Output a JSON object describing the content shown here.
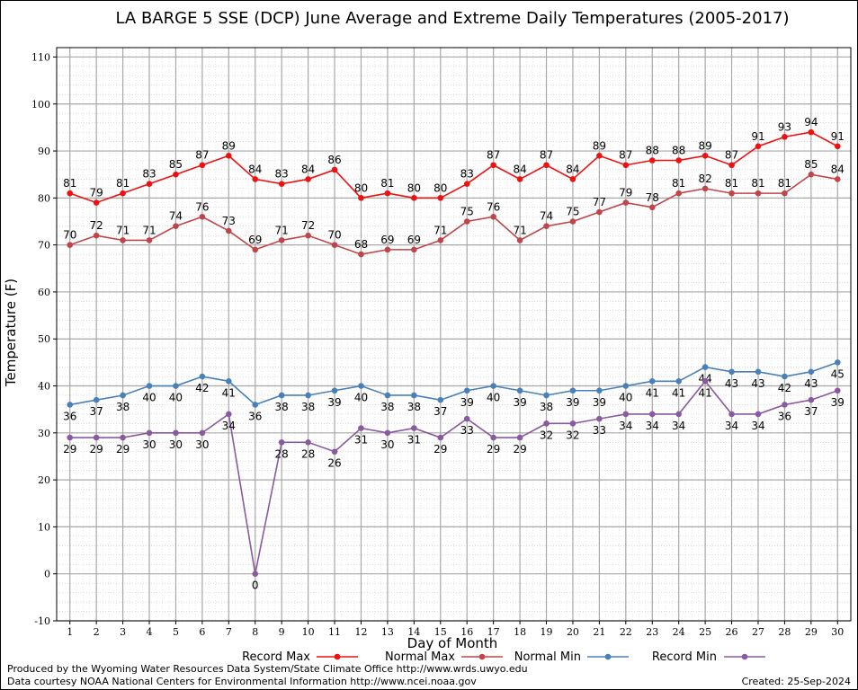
{
  "chart_data": {
    "type": "line",
    "title": "LA BARGE 5 SSE (DCP) June Average and Extreme Daily Temperatures (2005-2017)",
    "xlabel": "Day of Month",
    "ylabel": "Temperature (F)",
    "ylim": [
      -10,
      112
    ],
    "xlim": [
      0.5,
      30.5
    ],
    "yticks": [
      -10,
      0,
      10,
      20,
      30,
      40,
      50,
      60,
      70,
      80,
      90,
      100,
      110
    ],
    "x": [
      1,
      2,
      3,
      4,
      5,
      6,
      7,
      8,
      9,
      10,
      11,
      12,
      13,
      14,
      15,
      16,
      17,
      18,
      19,
      20,
      21,
      22,
      23,
      24,
      25,
      26,
      27,
      28,
      29,
      30
    ],
    "grid": true,
    "legend_position": "bottom",
    "series": [
      {
        "name": "Record Max",
        "color": "#ee1111",
        "label_position": "above",
        "values": [
          81,
          79,
          81,
          83,
          85,
          87,
          89,
          84,
          83,
          84,
          86,
          80,
          81,
          80,
          80,
          83,
          87,
          84,
          87,
          84,
          89,
          87,
          88,
          88,
          89,
          87,
          91,
          93,
          94,
          91
        ]
      },
      {
        "name": "Normal Max",
        "color": "#c0454a",
        "label_position": "above",
        "values": [
          70,
          72,
          71,
          71,
          74,
          76,
          73,
          69,
          71,
          72,
          70,
          68,
          69,
          69,
          71,
          75,
          76,
          71,
          74,
          75,
          77,
          79,
          78,
          81,
          82,
          81,
          81,
          81,
          85,
          84
        ]
      },
      {
        "name": "Normal Min",
        "color": "#4a80b8",
        "label_position": "below",
        "values": [
          36,
          37,
          38,
          40,
          40,
          42,
          41,
          36,
          38,
          38,
          39,
          40,
          38,
          38,
          37,
          39,
          40,
          39,
          38,
          39,
          39,
          40,
          41,
          41,
          44,
          43,
          43,
          42,
          43,
          45
        ]
      },
      {
        "name": "Record Min",
        "color": "#8a5a9e",
        "label_position": "below",
        "values": [
          29,
          29,
          29,
          30,
          30,
          30,
          34,
          0,
          28,
          28,
          26,
          31,
          30,
          31,
          29,
          33,
          29,
          29,
          32,
          32,
          33,
          34,
          34,
          34,
          41,
          34,
          34,
          36,
          37,
          39
        ]
      }
    ]
  },
  "footer": {
    "line1": "Produced by the Wyoming Water Resources Data System/State Climate Office http://www.wrds.uwyo.edu",
    "line2": "Data courtesy NOAA National Centers for Environmental Information http://www.ncei.noaa.gov",
    "created": "Created:  25-Sep-2024"
  }
}
